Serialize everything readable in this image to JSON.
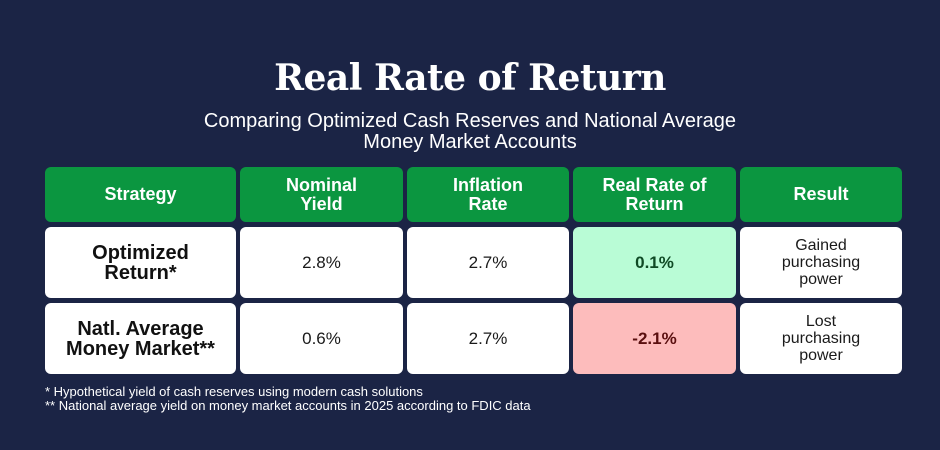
{
  "header": {
    "title": "Real Rate of Return",
    "subtitle_line1": "Comparing Optimized Cash Reserves and National Average",
    "subtitle_line2": "Money Market Accounts"
  },
  "colors": {
    "background": "#1b2445",
    "header_green": "#0b9640",
    "positive_fill": "#b9fcd6",
    "negative_fill": "#fdbcbc"
  },
  "table": {
    "columns": [
      {
        "line1": "Strategy",
        "line2": ""
      },
      {
        "line1": "Nominal",
        "line2": "Yield"
      },
      {
        "line1": "Inflation",
        "line2": "Rate"
      },
      {
        "line1": "Real Rate of",
        "line2": "Return"
      },
      {
        "line1": "Result",
        "line2": ""
      }
    ],
    "rows": [
      {
        "strategy_line1": "Optimized",
        "strategy_line2": "Return*",
        "nominal_yield": "2.8%",
        "inflation_rate": "2.7%",
        "real_rate": "0.1%",
        "result_line1": "Gained",
        "result_line2": "purchasing",
        "result_line3": "power"
      },
      {
        "strategy_line1": "Natl. Average",
        "strategy_line2": "Money Market**",
        "nominal_yield": "0.6%",
        "inflation_rate": "2.7%",
        "real_rate": "-2.1%",
        "result_line1": "Lost",
        "result_line2": "purchasing",
        "result_line3": "power"
      }
    ]
  },
  "footnotes": [
    "* Hypothetical yield of cash reserves using modern cash solutions",
    "** National average yield on money market accounts in 2025 according to FDIC data"
  ]
}
